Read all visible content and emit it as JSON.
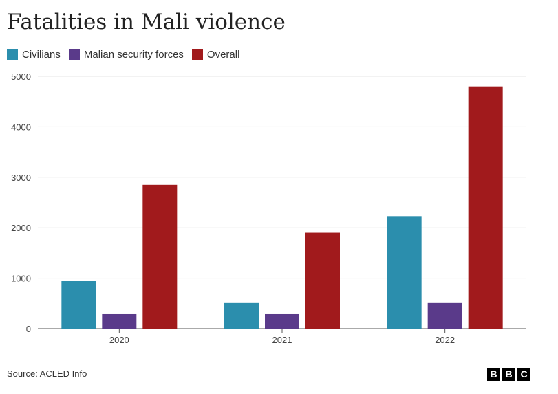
{
  "header": {
    "title": "Fatalities in Mali violence"
  },
  "chart_data": {
    "type": "bar",
    "title": "Fatalities in Mali violence",
    "xlabel": "",
    "ylabel": "",
    "categories": [
      "2020",
      "2021",
      "2022"
    ],
    "series": [
      {
        "name": "Civilians",
        "values": [
          950,
          520,
          2230
        ],
        "color": "#2b8ead"
      },
      {
        "name": "Malian security forces",
        "values": [
          300,
          300,
          520
        ],
        "color": "#5a3a8a"
      },
      {
        "name": "Overall",
        "values": [
          2850,
          1900,
          4800
        ],
        "color": "#a11a1c"
      }
    ],
    "ylim": [
      0,
      5000
    ],
    "yticks": [
      0,
      1000,
      2000,
      3000,
      4000,
      5000
    ],
    "ytick_labels": [
      "0",
      "1000",
      "2000",
      "3000",
      "4000",
      "5000"
    ],
    "grid": true,
    "legend": "top-left"
  },
  "footer": {
    "source": "Source: ACLED Info",
    "logo_letters": [
      "B",
      "B",
      "C"
    ]
  }
}
